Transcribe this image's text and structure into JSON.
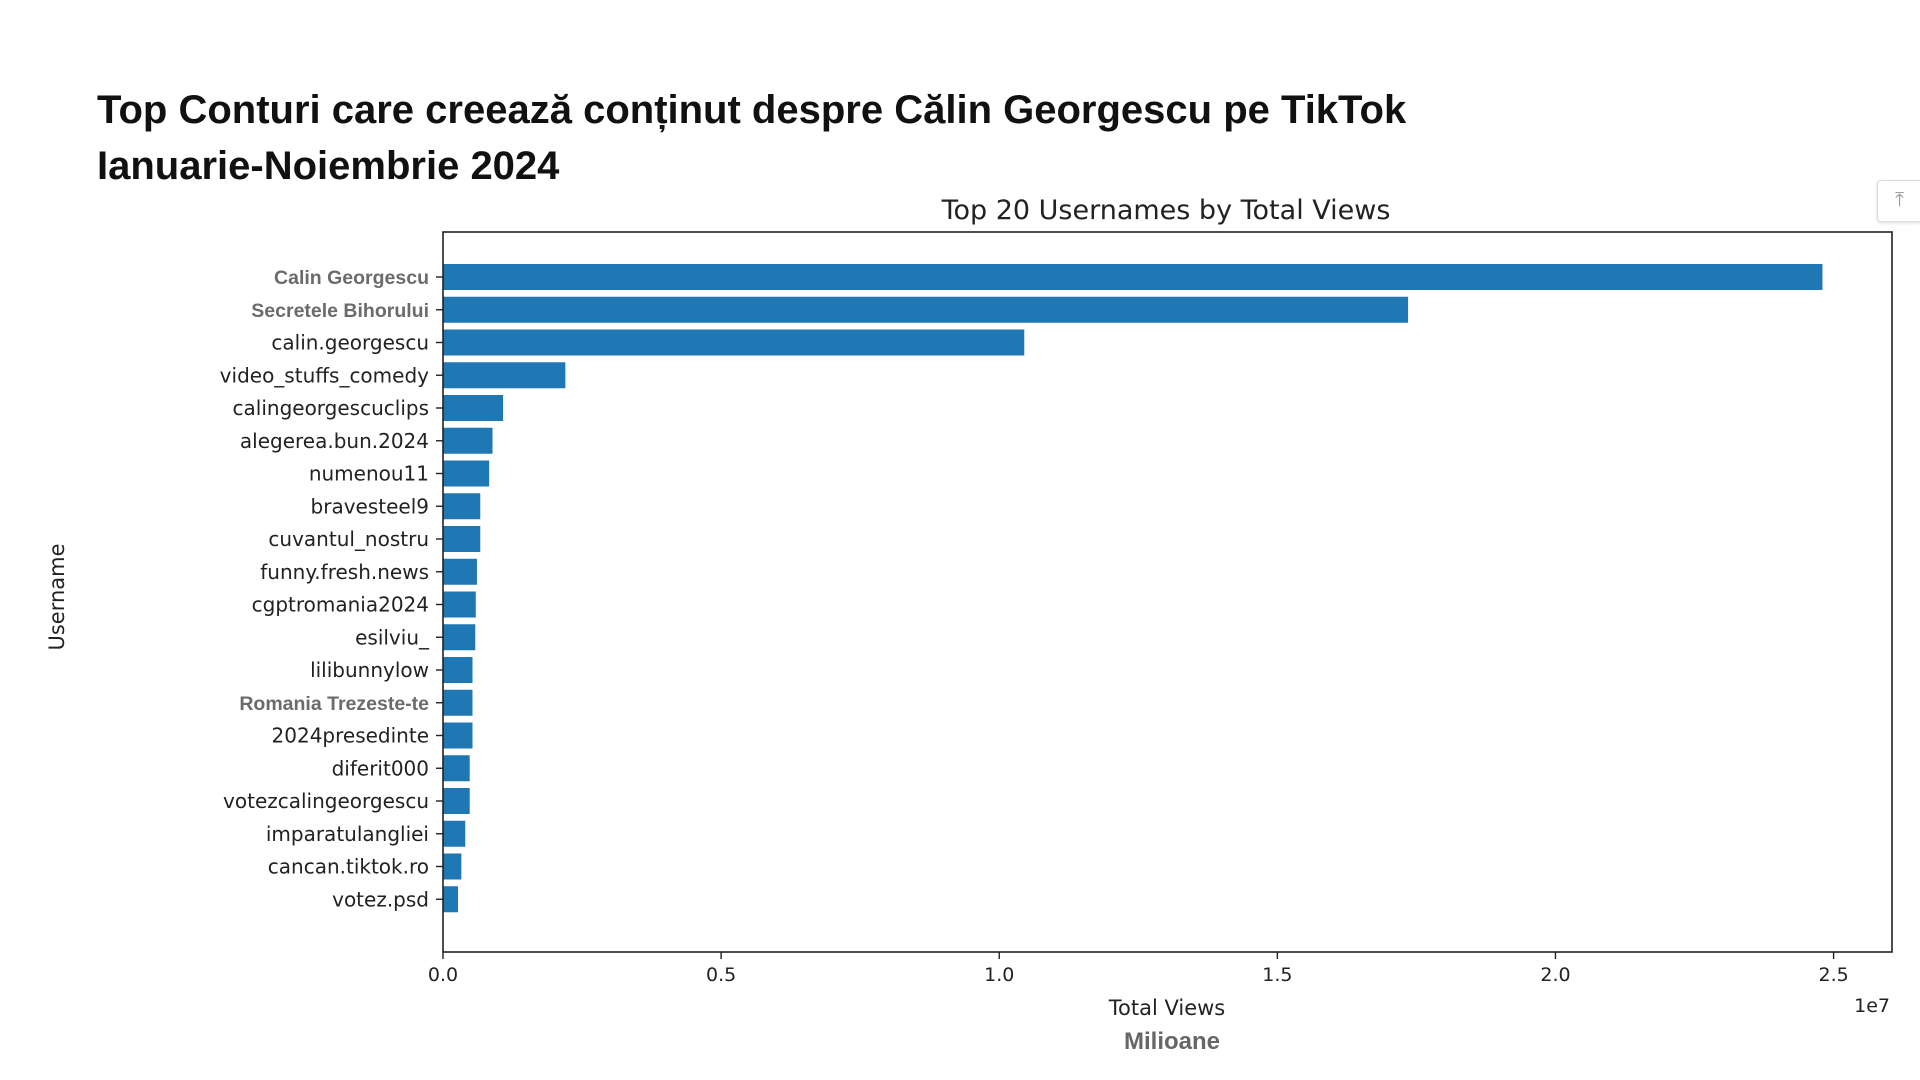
{
  "header": {
    "title_line1": "Top Conturi care creează conținut despre Călin Georgescu pe TikTok",
    "title_line2": "Ianuarie-Noiembrie 2024"
  },
  "scroll_top_icon": "arrow-up-bar-icon",
  "chart_data": {
    "type": "bar",
    "orientation": "horizontal",
    "title": "Top 20 Usernames by Total Views",
    "xlabel": "Total Views",
    "xlabel_overlay": "Milioane",
    "ylabel": "Username",
    "x_offset_label": "1e7",
    "xlim": [
      0,
      26050000
    ],
    "xticks": [
      0,
      5000000,
      10000000,
      15000000,
      20000000,
      25000000
    ],
    "xtick_labels": [
      "0.0",
      "0.5",
      "1.0",
      "1.5",
      "2.0",
      "2.5"
    ],
    "bar_color": "#1f77b4",
    "grid": false,
    "categories": [
      "Calin Georgescu",
      "Secretele Bihorului",
      "calin.georgescu",
      "video_stuffs_comedy",
      "calingeorgescuclips",
      "alegerea.bun.2024",
      "numenou11",
      "bravesteel9",
      "cuvantul_nostru",
      "funny.fresh.news",
      "cgptromania2024",
      "esilviu_",
      "lilibunnylow",
      "Romania Trezeste-te",
      "2024presedinte",
      "diferit000",
      "votezcalingeorgescu",
      "imparatulangliei",
      "cancan.tiktok.ro",
      "votez.psd"
    ],
    "overlaid_categories": [
      "Calin Georgescu",
      "Secretele Bihorului",
      "Romania Trezeste-te"
    ],
    "values": [
      24800000,
      17350000,
      10450000,
      2200000,
      1080000,
      890000,
      830000,
      670000,
      670000,
      610000,
      590000,
      580000,
      530000,
      530000,
      530000,
      480000,
      480000,
      400000,
      330000,
      270000
    ]
  }
}
